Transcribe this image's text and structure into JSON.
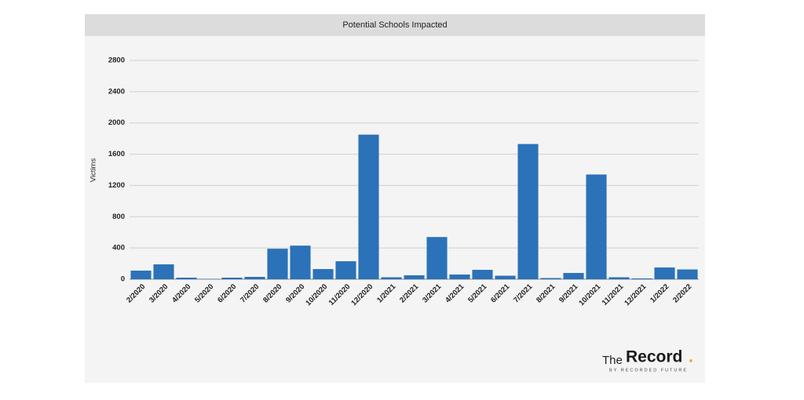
{
  "chart_data": {
    "type": "bar",
    "title": "Potential Schools Impacted",
    "y_label": "Victims",
    "categories": [
      "2/2020",
      "3/2020",
      "4/2020",
      "5/2020",
      "6/2020",
      "7/2020",
      "8/2020",
      "9/2020",
      "10/2020",
      "11/2020",
      "12/2020",
      "1/2021",
      "2/2021",
      "3/2021",
      "4/2021",
      "5/2021",
      "6/2021",
      "7/2021",
      "8/2021",
      "9/2021",
      "10/2021",
      "11/2021",
      "12/2021",
      "1/2022",
      "2/2022"
    ],
    "values": [
      110,
      190,
      20,
      5,
      20,
      30,
      390,
      430,
      130,
      230,
      1850,
      25,
      50,
      540,
      60,
      120,
      45,
      1730,
      15,
      80,
      1340,
      25,
      10,
      150,
      125
    ],
    "color": "#2b72b8",
    "ylim": [
      0,
      2800
    ],
    "yticks": [
      0,
      400,
      800,
      1200,
      1600,
      2000,
      2400,
      2800
    ],
    "grid": true
  },
  "logo": {
    "prefix": "The",
    "name": "Record",
    "dot": ".",
    "tagline": "BY RECORDED FUTURE"
  }
}
